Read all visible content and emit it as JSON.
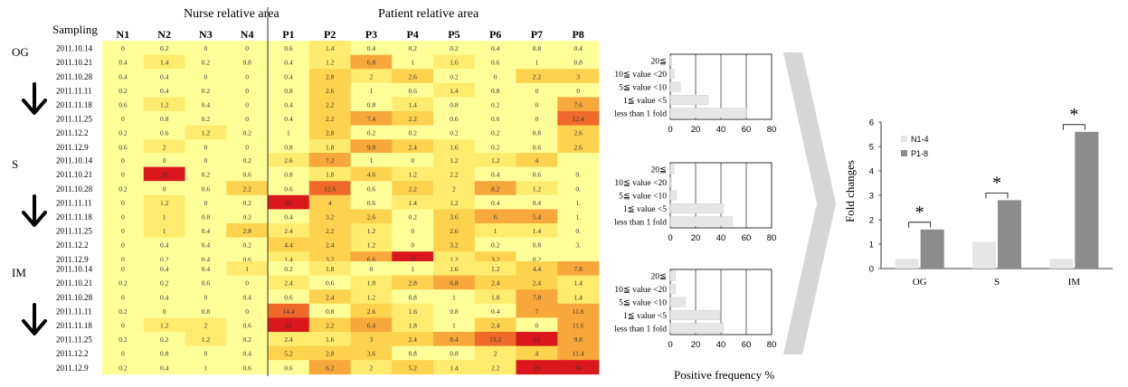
{
  "colors": {
    "c0": "#ffff99",
    "c1": "#ffec6e",
    "c2": "#fdd24e",
    "c3": "#f8a83a",
    "c4": "#ef6a2a",
    "c5": "#d9171c",
    "bar_light": "#e6e6e6",
    "bar_dark": "#8c8c8c",
    "arrow_fill": "#d6d6d6"
  },
  "icons": [
    "down-arrow-icon",
    "chevron-right-icon",
    "significance-star-icon"
  ],
  "heatmap": {
    "sampling_label": "Sampling",
    "nurse_label": "Nurse relative area",
    "patient_label": "Patient relative area",
    "columns": [
      "N1",
      "N2",
      "N3",
      "N4",
      "P1",
      "P2",
      "P3",
      "P4",
      "P5",
      "P6",
      "P7",
      "P8"
    ],
    "groups": [
      {
        "name": "OG",
        "dates": [
          "2011.10.14",
          "2011.10.21",
          "2011.10.28",
          "2011.11.11",
          "2011.11.18",
          "2011.11.25",
          "2011.12.2",
          "2011.12.9"
        ],
        "values": [
          [
            "0",
            "0.2",
            "0",
            "0",
            "0.6",
            "1.4",
            "0.4",
            "0.2",
            "0.2",
            "0.4",
            "0.8",
            "0.4"
          ],
          [
            "0.4",
            "1.4",
            "0.2",
            "0.8",
            "0.4",
            "1.2",
            "6.8",
            "1",
            "1.6",
            "0.6",
            "1",
            "0.8"
          ],
          [
            "0.4",
            "0.4",
            "0",
            "0",
            "0.4",
            "2.8",
            "2",
            "2.6",
            "0.2",
            "0",
            "2.2",
            "3"
          ],
          [
            "0.2",
            "0.4",
            "0.2",
            "0",
            "0.8",
            "2.6",
            "1",
            "0.6",
            "1.4",
            "0.8",
            "0",
            "0"
          ],
          [
            "0.6",
            "1.2",
            "0.4",
            "0",
            "0.4",
            "2.2",
            "0.8",
            "1.4",
            "0.8",
            "0.2",
            "0",
            "7.6"
          ],
          [
            "0",
            "0.8",
            "0.2",
            "0",
            "0.4",
            "2.2",
            "7.4",
            "2.2",
            "0.6",
            "0.6",
            "0",
            "12.4"
          ],
          [
            "0.2",
            "0.6",
            "1.2",
            "0.2",
            "1",
            "2.8",
            "0.2",
            "0.2",
            "0.2",
            "0.2",
            "0.8",
            "2.6"
          ],
          [
            "0.6",
            "2",
            "0",
            "0",
            "0.8",
            "1.8",
            "9.8",
            "2.4",
            "1.6",
            "0.2",
            "0.6",
            "2.6"
          ]
        ],
        "levels": [
          [
            0,
            0,
            0,
            0,
            0,
            1,
            0,
            0,
            0,
            0,
            0,
            0
          ],
          [
            0,
            1,
            0,
            0,
            0,
            1,
            3,
            0,
            1,
            0,
            0,
            0
          ],
          [
            0,
            0,
            0,
            0,
            0,
            2,
            1,
            2,
            0,
            0,
            2,
            2
          ],
          [
            0,
            0,
            0,
            0,
            0,
            2,
            0,
            0,
            1,
            0,
            0,
            0
          ],
          [
            0,
            1,
            0,
            0,
            0,
            2,
            0,
            1,
            0,
            0,
            0,
            3
          ],
          [
            0,
            0,
            0,
            0,
            0,
            2,
            3,
            2,
            0,
            0,
            0,
            4
          ],
          [
            0,
            0,
            1,
            0,
            0,
            2,
            0,
            0,
            0,
            0,
            0,
            2
          ],
          [
            0,
            1,
            0,
            0,
            0,
            1,
            3,
            2,
            1,
            0,
            0,
            2
          ]
        ]
      },
      {
        "name": "S",
        "dates": [
          "2011.10.14",
          "2011.10.21",
          "2011.10.28",
          "2011.11.11",
          "2011.11.18",
          "2011.11.25",
          "2011.12.2",
          "2011.12.9"
        ],
        "values": [
          [
            "0",
            "0",
            "0",
            "0.2",
            "2.6",
            "7.2",
            "1",
            "0",
            "1.2",
            "1.2",
            "4",
            ""
          ],
          [
            "0",
            "26",
            "0.2",
            "0.6",
            "0.8",
            "1.8",
            "4.6",
            "1.2",
            "2.2",
            "0.4",
            "0.6",
            "0."
          ],
          [
            "0.2",
            "0",
            "0.6",
            "2.2",
            "0.6",
            "12.6",
            "0.6",
            "2.2",
            "2",
            "8.2",
            "1.2",
            "0."
          ],
          [
            "0",
            "1.2",
            "0",
            "0.2",
            "20",
            "4",
            "0.6",
            "1.4",
            "1.2",
            "0.4",
            "0.4",
            "1."
          ],
          [
            "0",
            "1",
            "0.8",
            "0.2",
            "0.4",
            "3.2",
            "2.6",
            "0.2",
            "3.6",
            "6",
            "5.4",
            "1."
          ],
          [
            "0",
            "1",
            "0.4",
            "2.8",
            "2.4",
            "2.2",
            "1.2",
            "0",
            "2.6",
            "1",
            "1.4",
            "0."
          ],
          [
            "0",
            "0.4",
            "0.4",
            "0.2",
            "4.4",
            "2.4",
            "1.2",
            "0",
            "3.2",
            "0.2",
            "0.8",
            "3."
          ],
          [
            "0",
            "0.2",
            "0.4",
            "0.6",
            "1.4",
            "3.2",
            "6.6",
            "22",
            "1.2",
            "3.2",
            "0.2",
            ""
          ]
        ],
        "levels": [
          [
            0,
            0,
            0,
            0,
            1,
            3,
            0,
            0,
            1,
            1,
            2,
            0
          ],
          [
            0,
            5,
            0,
            0,
            0,
            1,
            2,
            1,
            1,
            0,
            0,
            0
          ],
          [
            0,
            0,
            0,
            2,
            0,
            4,
            0,
            2,
            1,
            3,
            1,
            0
          ],
          [
            0,
            1,
            0,
            0,
            5,
            2,
            0,
            1,
            1,
            0,
            0,
            0
          ],
          [
            0,
            1,
            0,
            0,
            0,
            2,
            2,
            0,
            2,
            3,
            3,
            0
          ],
          [
            0,
            1,
            0,
            2,
            1,
            2,
            1,
            0,
            2,
            1,
            1,
            0
          ],
          [
            0,
            0,
            0,
            0,
            2,
            2,
            1,
            0,
            2,
            0,
            0,
            0
          ],
          [
            0,
            0,
            0,
            0,
            1,
            2,
            3,
            5,
            1,
            2,
            0,
            0
          ]
        ]
      },
      {
        "name": "IM",
        "dates": [
          "2011.10.14",
          "2011.10.21",
          "2011.10.28",
          "2011.11.11",
          "2011.11.18",
          "2011.11.25",
          "2011.12.2",
          "2011.12.9"
        ],
        "values": [
          [
            "0",
            "0.4",
            "0.4",
            "1",
            "0.2",
            "1.8",
            "0",
            "1",
            "1.6",
            "1.2",
            "4.4",
            "7.8"
          ],
          [
            "0.2",
            "0.2",
            "0.6",
            "0",
            "2.4",
            "0.6",
            "1.8",
            "2.8",
            "6.8",
            "2.4",
            "2.4",
            "1.4"
          ],
          [
            "0",
            "0.4",
            "0",
            "0.4",
            "0.6",
            "2.4",
            "1.2",
            "0.8",
            "1",
            "1.8",
            "7.8",
            "1.4"
          ],
          [
            "0.2",
            "0",
            "0.8",
            "0",
            "14.4",
            "0.8",
            "2.6",
            "1.6",
            "0.8",
            "0.4",
            "7",
            "11.6"
          ],
          [
            "0",
            "1.2",
            "2",
            "0.6",
            "22",
            "2.2",
            "6.4",
            "1.8",
            "1",
            "2.4",
            "0",
            "11.6"
          ],
          [
            "0.2",
            "0.2",
            "1.2",
            "0.2",
            "2.4",
            "1.6",
            "3",
            "2.4",
            "8.4",
            "13.2",
            "23",
            "9.8"
          ],
          [
            "0",
            "0.8",
            "0",
            "0.4",
            "5.2",
            "2.8",
            "3.6",
            "0.8",
            "0.8",
            "2",
            "4",
            "11.4"
          ],
          [
            "0.2",
            "0.4",
            "1",
            "0.6",
            "0.6",
            "6.2",
            "2",
            "5.2",
            "1.4",
            "2.2",
            "29",
            "30"
          ]
        ],
        "levels": [
          [
            0,
            0,
            0,
            1,
            0,
            1,
            0,
            0,
            1,
            1,
            2,
            3
          ],
          [
            0,
            0,
            0,
            0,
            1,
            0,
            1,
            2,
            3,
            2,
            2,
            1
          ],
          [
            0,
            0,
            0,
            0,
            0,
            2,
            1,
            0,
            0,
            1,
            3,
            1
          ],
          [
            0,
            0,
            0,
            0,
            4,
            0,
            2,
            1,
            0,
            0,
            3,
            3
          ],
          [
            0,
            1,
            1,
            0,
            5,
            2,
            3,
            1,
            0,
            2,
            0,
            3
          ],
          [
            0,
            0,
            1,
            0,
            1,
            1,
            2,
            2,
            3,
            4,
            5,
            3
          ],
          [
            0,
            0,
            0,
            0,
            2,
            2,
            2,
            0,
            0,
            1,
            2,
            3
          ],
          [
            0,
            0,
            0,
            0,
            0,
            3,
            1,
            2,
            1,
            1,
            5,
            5
          ]
        ]
      }
    ]
  },
  "chart_data": [
    {
      "type": "bar",
      "orientation": "horizontal",
      "categories": [
        "20≦",
        "10≦ value <20",
        "5≦ value <10",
        "1≦ value <5",
        "less than 1 fold"
      ],
      "values": [
        1,
        3,
        8,
        30,
        60
      ],
      "xlim": [
        0,
        80
      ],
      "xticks": [
        "0",
        "20",
        "40",
        "60",
        "80"
      ]
    },
    {
      "type": "bar",
      "orientation": "horizontal",
      "categories": [
        "20≦",
        "10≦ value <20",
        "5≦ value <10",
        "1≦ value <5",
        "less than 1 fold"
      ],
      "values": [
        3,
        1,
        5,
        42,
        49
      ],
      "xlim": [
        0,
        80
      ],
      "xticks": [
        "0",
        "20",
        "40",
        "60",
        "80"
      ]
    },
    {
      "type": "bar",
      "orientation": "horizontal",
      "categories": [
        "20≦",
        "10≦ value <20",
        "5≦ value <10",
        "1≦ value <5",
        "less than 1 fold"
      ],
      "values": [
        4,
        4,
        12,
        39,
        42
      ],
      "xlim": [
        0,
        80
      ],
      "xticks": [
        "0",
        "20",
        "40",
        "60",
        "80"
      ],
      "xlabel": "Positive frequency %"
    },
    {
      "type": "bar",
      "categories": [
        "OG",
        "S",
        "IM"
      ],
      "series": [
        {
          "name": "N1-4",
          "values": [
            0.4,
            1.1,
            0.4
          ]
        },
        {
          "name": "P1-8",
          "values": [
            1.6,
            2.8,
            5.6
          ]
        }
      ],
      "ylabel": "Fold changes",
      "ylim": [
        0,
        6
      ],
      "yticks": [
        "0",
        "1",
        "2",
        "3",
        "4",
        "5",
        "6"
      ],
      "annotation": "*",
      "legend": "top-left"
    }
  ]
}
